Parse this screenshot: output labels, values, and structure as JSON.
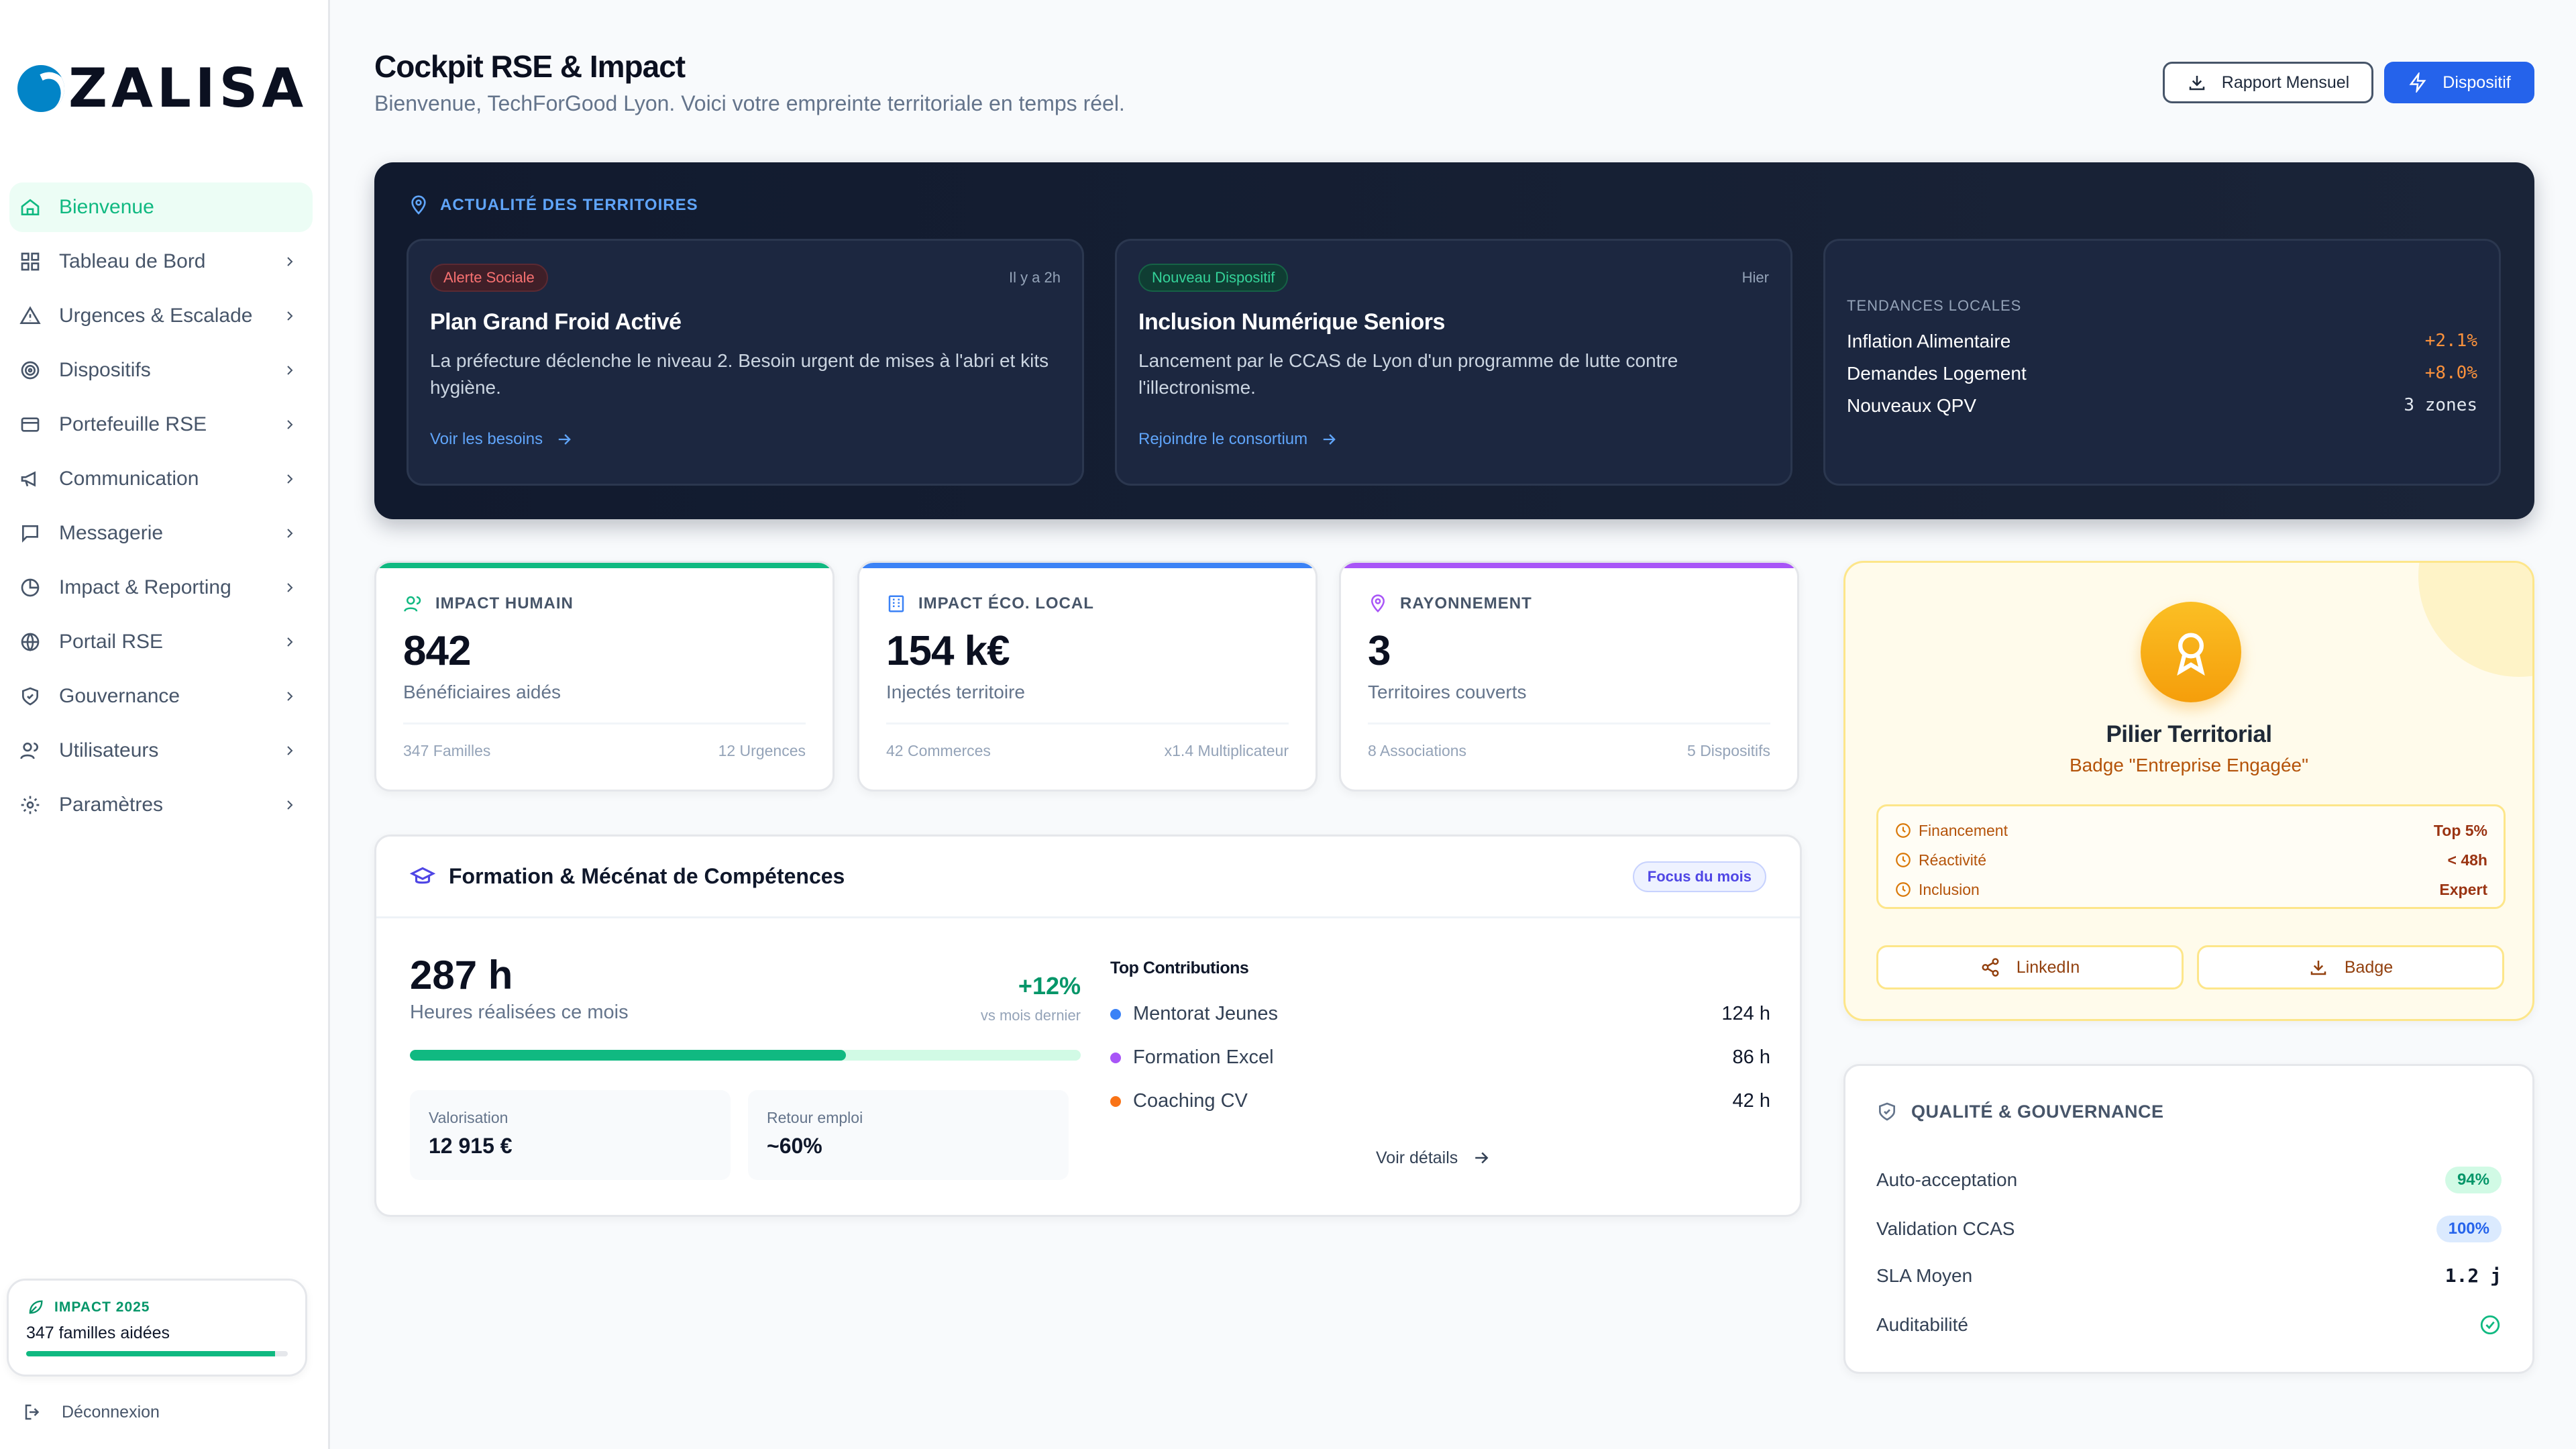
{
  "brand": {
    "name": "ZALISA"
  },
  "sidebar": {
    "items": [
      {
        "label": "Bienvenue",
        "icon": "home-icon",
        "active": true
      },
      {
        "label": "Tableau de Bord",
        "icon": "dashboard-icon"
      },
      {
        "label": "Urgences & Escalade",
        "icon": "alert-triangle-icon"
      },
      {
        "label": "Dispositifs",
        "icon": "target-icon"
      },
      {
        "label": "Portefeuille RSE",
        "icon": "wallet-icon"
      },
      {
        "label": "Communication",
        "icon": "megaphone-icon"
      },
      {
        "label": "Messagerie",
        "icon": "message-icon"
      },
      {
        "label": "Impact & Reporting",
        "icon": "pie-chart-icon"
      },
      {
        "label": "Portail RSE",
        "icon": "globe-icon"
      },
      {
        "label": "Gouvernance",
        "icon": "shield-icon"
      },
      {
        "label": "Utilisateurs",
        "icon": "users-icon"
      },
      {
        "label": "Paramètres",
        "icon": "settings-icon"
      }
    ],
    "impact": {
      "title": "IMPACT 2025",
      "text": "347 familles aidées",
      "progress": 0.95
    },
    "logout": "Déconnexion"
  },
  "header": {
    "title": "Cockpit RSE & Impact",
    "subtitle": "Bienvenue, TechForGood Lyon. Voici votre empreinte territoriale en temps réel.",
    "report_button": "Rapport Mensuel",
    "dispositif_button": "Dispositif"
  },
  "news": {
    "heading": "ACTUALITÉ DES TERRITOIRES",
    "cards": [
      {
        "badge": "Alerte Sociale",
        "time": "Il y a 2h",
        "title": "Plan Grand Froid Activé",
        "desc": "La préfecture déclenche le niveau 2. Besoin urgent de mises à l'abri et kits hygiène.",
        "link": "Voir les besoins"
      },
      {
        "badge": "Nouveau Dispositif",
        "time": "Hier",
        "title": "Inclusion Numérique Seniors",
        "desc": "Lancement par le CCAS de Lyon d'un programme de lutte contre l'illectronisme.",
        "link": "Rejoindre le consortium"
      }
    ],
    "trends": {
      "title": "TENDANCES LOCALES",
      "rows": [
        {
          "label": "Inflation Alimentaire",
          "value": "+2.1%"
        },
        {
          "label": "Demandes Logement",
          "value": "+8.0%"
        },
        {
          "label": "Nouveaux QPV",
          "value": "3 zones"
        }
      ]
    }
  },
  "kpis": [
    {
      "title": "IMPACT HUMAIN",
      "value": "842",
      "label": "Bénéficiaires aidés",
      "foot_left": "347 Familles",
      "foot_right": "12 Urgences",
      "color": "#10b981"
    },
    {
      "title": "IMPACT ÉCO. LOCAL",
      "value": "154 k€",
      "label": "Injectés territoire",
      "foot_left": "42 Commerces",
      "foot_right": "x1.4 Multiplicateur",
      "color": "#3b82f6"
    },
    {
      "title": "RAYONNEMENT",
      "value": "3",
      "label": "Territoires couverts",
      "foot_left": "8 Associations",
      "foot_right": "5 Dispositifs",
      "color": "#a855f7"
    }
  ],
  "formation": {
    "title": "Formation & Mécénat de Compétences",
    "badge": "Focus du mois",
    "hours": "287 h",
    "hours_label": "Heures réalisées ce mois",
    "growth": "+12%",
    "growth_sub": "vs mois dernier",
    "progress": 0.65,
    "valorisation_label": "Valorisation",
    "valorisation": "12 915 €",
    "retour_label": "Retour emploi",
    "retour": "~60%",
    "top_title": "Top Contributions",
    "contributions": [
      {
        "name": "Mentorat Jeunes",
        "value": "124 h",
        "color": "#3b82f6"
      },
      {
        "name": "Formation Excel",
        "value": "86 h",
        "color": "#a855f7"
      },
      {
        "name": "Coaching CV",
        "value": "42 h",
        "color": "#f97316"
      }
    ],
    "details_link": "Voir détails"
  },
  "pilier": {
    "title": "Pilier Territorial",
    "subtitle": "Badge \"Entreprise Engagée\"",
    "rows": [
      {
        "label": "Financement",
        "value": "Top 5%"
      },
      {
        "label": "Réactivité",
        "value": "< 48h"
      },
      {
        "label": "Inclusion",
        "value": "Expert"
      }
    ],
    "linkedin_button": "LinkedIn",
    "badge_button": "Badge"
  },
  "quality": {
    "title": "QUALITÉ & GOUVERNANCE",
    "rows": [
      {
        "label": "Auto-acceptation",
        "value": "94%"
      },
      {
        "label": "Validation CCAS",
        "value": "100%"
      },
      {
        "label": "SLA Moyen",
        "value": "1.2 j"
      },
      {
        "label": "Auditabilité",
        "value": ""
      }
    ]
  }
}
